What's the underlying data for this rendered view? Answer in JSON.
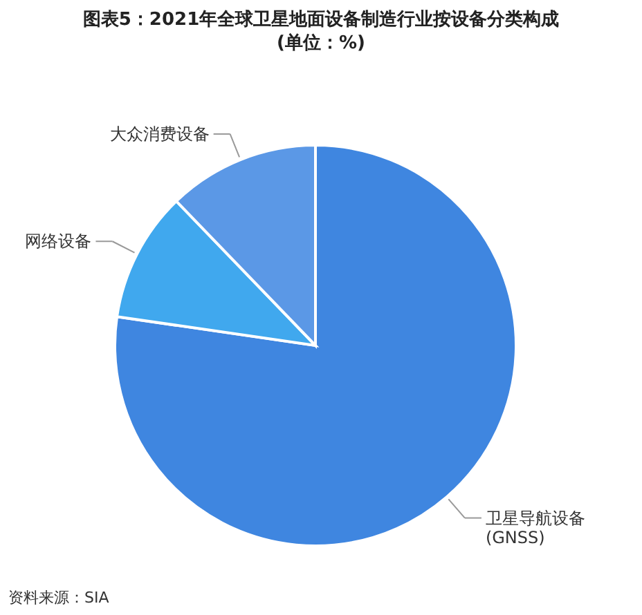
{
  "chart_data": {
    "type": "pie",
    "title": "图表5：2021年全球卫星地面设备制造行业按设备分类构成\n(单位：%)",
    "categories": [
      "卫星导航设备\n(GNSS)",
      "网络设备",
      "大众消费设备"
    ],
    "values": [
      77.3,
      10.5,
      12.2
    ],
    "colors": [
      "#3f86e0",
      "#40a8ee",
      "#5b98e6"
    ],
    "annotations": [
      "资料来源：SIA"
    ]
  }
}
